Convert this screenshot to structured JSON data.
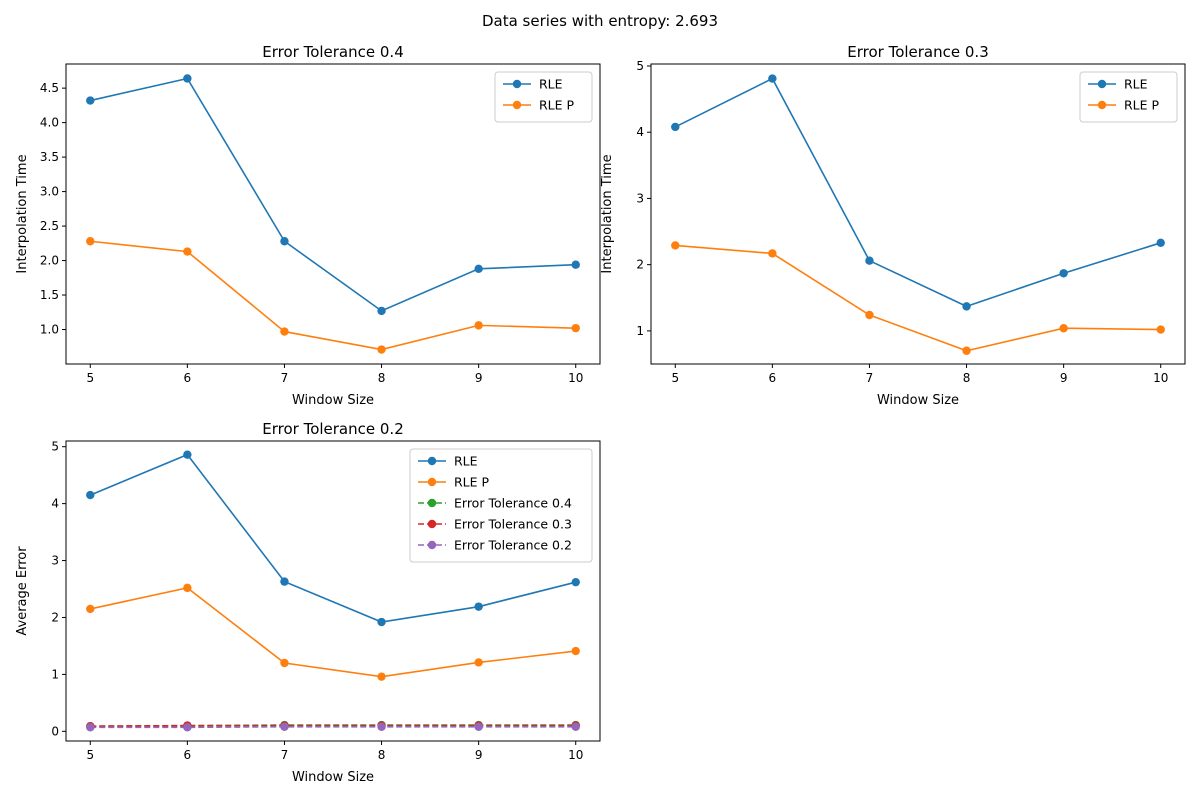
{
  "figure": {
    "suptitle": "Data series with entropy: 2.693"
  },
  "chart_data": [
    {
      "type": "line",
      "title": "Error Tolerance 0.4",
      "xlabel": "Window Size",
      "ylabel": "Interpolation Time",
      "x": [
        5,
        6,
        7,
        8,
        9,
        10
      ],
      "xlim": [
        4.75,
        10.25
      ],
      "ylim": [
        0.5,
        4.85
      ],
      "yticks": [
        1.0,
        1.5,
        2.0,
        2.5,
        3.0,
        3.5,
        4.0,
        4.5
      ],
      "ytick_labels": [
        "1.0",
        "1.5",
        "2.0",
        "2.5",
        "3.0",
        "3.5",
        "4.0",
        "4.5"
      ],
      "xticks": [
        5,
        6,
        7,
        8,
        9,
        10
      ],
      "xtick_labels": [
        "5",
        "6",
        "7",
        "8",
        "9",
        "10"
      ],
      "grid": false,
      "legend": "top-right",
      "series": [
        {
          "name": "RLE",
          "color": "#1f77b4",
          "dashed": false,
          "values": [
            4.32,
            4.64,
            2.28,
            1.27,
            1.88,
            1.94
          ]
        },
        {
          "name": "RLE P",
          "color": "#ff7f0e",
          "dashed": false,
          "values": [
            2.28,
            2.13,
            0.97,
            0.71,
            1.06,
            1.02
          ]
        }
      ]
    },
    {
      "type": "line",
      "title": "Error Tolerance 0.3",
      "xlabel": "Window Size",
      "ylabel": "Interpolation Time",
      "x": [
        5,
        6,
        7,
        8,
        9,
        10
      ],
      "xlim": [
        4.75,
        10.25
      ],
      "ylim": [
        0.5,
        5.03
      ],
      "yticks": [
        1,
        2,
        3,
        4,
        5
      ],
      "ytick_labels": [
        "1",
        "2",
        "3",
        "4",
        "5"
      ],
      "xticks": [
        5,
        6,
        7,
        8,
        9,
        10
      ],
      "xtick_labels": [
        "5",
        "6",
        "7",
        "8",
        "9",
        "10"
      ],
      "grid": false,
      "legend": "top-right",
      "series": [
        {
          "name": "RLE",
          "color": "#1f77b4",
          "dashed": false,
          "values": [
            4.08,
            4.81,
            2.06,
            1.37,
            1.87,
            2.33
          ]
        },
        {
          "name": "RLE P",
          "color": "#ff7f0e",
          "dashed": false,
          "values": [
            2.29,
            2.17,
            1.24,
            0.7,
            1.04,
            1.02
          ]
        }
      ]
    },
    {
      "type": "line",
      "title": "Error Tolerance 0.2",
      "xlabel": "Window Size",
      "ylabel": "Average Error",
      "x": [
        5,
        6,
        7,
        8,
        9,
        10
      ],
      "xlim": [
        4.75,
        10.25
      ],
      "ylim": [
        -0.17,
        5.1
      ],
      "yticks": [
        0,
        1,
        2,
        3,
        4,
        5
      ],
      "ytick_labels": [
        "0",
        "1",
        "2",
        "3",
        "4",
        "5"
      ],
      "xticks": [
        5,
        6,
        7,
        8,
        9,
        10
      ],
      "xtick_labels": [
        "5",
        "6",
        "7",
        "8",
        "9",
        "10"
      ],
      "grid": false,
      "legend": "top-right",
      "series": [
        {
          "name": "RLE",
          "color": "#1f77b4",
          "dashed": false,
          "values": [
            4.15,
            4.86,
            2.63,
            1.92,
            2.19,
            2.62
          ]
        },
        {
          "name": "RLE P",
          "color": "#ff7f0e",
          "dashed": false,
          "values": [
            2.15,
            2.52,
            1.2,
            0.96,
            1.21,
            1.41
          ]
        },
        {
          "name": "Error Tolerance 0.4",
          "color": "#2ca02c",
          "dashed": true,
          "values": [
            0.09,
            0.1,
            0.11,
            0.11,
            0.11,
            0.11
          ]
        },
        {
          "name": "Error Tolerance 0.3",
          "color": "#d62728",
          "dashed": true,
          "values": [
            0.09,
            0.1,
            0.1,
            0.1,
            0.1,
            0.1
          ]
        },
        {
          "name": "Error Tolerance 0.2",
          "color": "#9467bd",
          "dashed": true,
          "values": [
            0.07,
            0.07,
            0.08,
            0.08,
            0.08,
            0.08
          ]
        }
      ]
    }
  ]
}
